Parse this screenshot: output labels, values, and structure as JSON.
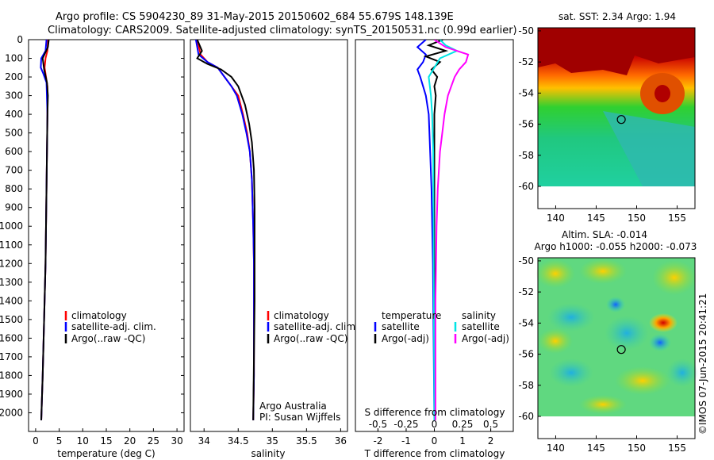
{
  "title_line1": "Argo profile: CS 5904230_89 31-May-2015 20150602_684 55.679S 148.139E",
  "title_line2": "Climatology: CARS2009. Satellite-adjusted climatology: synTS_20150531.nc (0.99d earlier)",
  "depth_axis": {
    "min": 0,
    "max": 2100,
    "ticks": [
      0,
      100,
      200,
      300,
      400,
      500,
      600,
      700,
      800,
      900,
      1000,
      1100,
      1200,
      1300,
      1400,
      1500,
      1600,
      1700,
      1800,
      1900,
      2000
    ]
  },
  "chart_data": [
    {
      "type": "line",
      "name": "temperature",
      "xlabel": "temperature (deg C)",
      "xlim": [
        -1.5,
        31.5
      ],
      "xticks": [
        0,
        5,
        10,
        15,
        20,
        25,
        30
      ],
      "series": [
        {
          "name": "climatology",
          "color": "#ff0000",
          "x": [
            2.6,
            2.5,
            2.1,
            1.9,
            2.2,
            2.5,
            2.5,
            2.4,
            2.3,
            2.2,
            2.1,
            1.9,
            1.7,
            1.5,
            1.2
          ],
          "y": [
            0,
            60,
            100,
            150,
            200,
            250,
            400,
            600,
            800,
            1000,
            1200,
            1400,
            1600,
            1800,
            2040
          ]
        },
        {
          "name": "satellite-adj. clim.",
          "color": "#0000ff",
          "x": [
            2.3,
            2.1,
            1.2,
            1.1,
            1.6,
            2.3,
            2.5,
            2.4,
            2.3,
            2.2,
            2.1,
            1.9,
            1.7,
            1.5,
            1.2
          ],
          "y": [
            0,
            60,
            100,
            150,
            180,
            230,
            400,
            600,
            800,
            1000,
            1200,
            1400,
            1600,
            1800,
            2040
          ]
        },
        {
          "name": "Argo(..raw -QC)",
          "color": "#000000",
          "x": [
            2.8,
            2.6,
            1.5,
            1.8,
            2.4,
            2.6,
            2.5,
            2.4,
            2.3,
            2.2,
            2.1,
            1.9,
            1.7,
            1.5,
            1.2
          ],
          "y": [
            0,
            40,
            100,
            160,
            230,
            300,
            400,
            600,
            800,
            1000,
            1200,
            1400,
            1600,
            1800,
            2040
          ]
        }
      ],
      "legend": [
        "climatology",
        "satellite-adj. clim.",
        "Argo(..raw -QC)"
      ]
    },
    {
      "type": "line",
      "name": "salinity",
      "xlabel": "salinity",
      "xlim": [
        33.8,
        36.1
      ],
      "xticks": [
        34,
        34.5,
        35,
        35.5,
        36
      ],
      "tick_labels": [
        "34",
        "34.5",
        "35",
        "35.5",
        "36"
      ],
      "series": [
        {
          "name": "climatology",
          "color": "#ff0000",
          "x": [
            33.9,
            33.95,
            34.05,
            34.2,
            34.3,
            34.4,
            34.5,
            34.57,
            34.63,
            34.67,
            34.7,
            34.72,
            34.73,
            34.73,
            34.73,
            34.72
          ],
          "y": [
            0,
            80,
            120,
            150,
            200,
            250,
            300,
            400,
            500,
            600,
            750,
            1000,
            1200,
            1500,
            1800,
            2040
          ]
        },
        {
          "name": "satellite-adj. clim.",
          "color": "#0000ff",
          "x": [
            33.88,
            33.92,
            34.05,
            34.2,
            34.3,
            34.4,
            34.48,
            34.56,
            34.62,
            34.67,
            34.7,
            34.72,
            34.73,
            34.73,
            34.73,
            34.72
          ],
          "y": [
            0,
            80,
            120,
            150,
            200,
            250,
            300,
            400,
            500,
            600,
            750,
            1000,
            1200,
            1500,
            1800,
            2040
          ]
        },
        {
          "name": "Argo(..raw -QC)",
          "color": "#000000",
          "x": [
            33.9,
            33.97,
            33.9,
            34.05,
            34.25,
            34.4,
            34.5,
            34.6,
            34.66,
            34.7,
            34.73,
            34.74,
            34.74,
            34.74,
            34.73,
            34.72
          ],
          "y": [
            0,
            60,
            100,
            130,
            160,
            200,
            250,
            350,
            450,
            550,
            700,
            900,
            1100,
            1400,
            1700,
            2040
          ]
        }
      ],
      "legend": [
        "climatology",
        "satellite-adj. clim.",
        "Argo(..raw -QC)"
      ],
      "annotation": [
        "Argo Australia",
        "PI: Susan Wijffels"
      ]
    },
    {
      "type": "line",
      "name": "difference",
      "xlabel": "T difference from climatology",
      "xlabel_top": "S difference from climatology",
      "xlim_T": [
        -2.8,
        2.8
      ],
      "xticks_T": [
        -2,
        -1,
        0,
        1,
        2
      ],
      "xlim_S": [
        -0.7,
        0.7
      ],
      "xticks_S": [
        -0.5,
        -0.25,
        0,
        0.25,
        0.5
      ],
      "tick_labels_S": [
        "-0.5",
        "-0.25",
        "0",
        "0.25",
        "0.5"
      ],
      "series": [
        {
          "name": "T satellite",
          "color": "#0000ff",
          "axis": "T",
          "x": [
            -0.3,
            -0.6,
            -0.3,
            -0.4,
            -0.6,
            -0.5,
            -0.4,
            -0.3,
            -0.2,
            -0.15,
            -0.1,
            -0.05,
            0
          ],
          "y": [
            0,
            40,
            80,
            120,
            160,
            200,
            250,
            300,
            400,
            600,
            800,
            1200,
            2040
          ]
        },
        {
          "name": "T Argo(-adj)",
          "color": "#000000",
          "axis": "T",
          "x": [
            0.3,
            -0.2,
            0.4,
            -0.3,
            0.2,
            -0.1,
            0.1,
            0,
            0.05,
            0,
            0,
            0,
            0
          ],
          "y": [
            0,
            30,
            60,
            90,
            120,
            160,
            200,
            250,
            300,
            400,
            600,
            1000,
            2040
          ]
        },
        {
          "name": "S satellite",
          "color": "#00e5e5",
          "axis": "S",
          "x": [
            0.05,
            0.1,
            0.2,
            0.05,
            0,
            -0.05,
            -0.04,
            -0.03,
            -0.02,
            -0.01,
            0
          ],
          "y": [
            0,
            30,
            60,
            100,
            150,
            200,
            250,
            300,
            400,
            600,
            2040
          ]
        },
        {
          "name": "S Argo(-adj)",
          "color": "#ff00ff",
          "axis": "S",
          "x": [
            0,
            0.1,
            0.3,
            0.28,
            0.22,
            0.18,
            0.15,
            0.12,
            0.09,
            0.07,
            0.05,
            0.03,
            0.02,
            0.01,
            0.01
          ],
          "y": [
            0,
            40,
            80,
            120,
            160,
            200,
            250,
            300,
            400,
            500,
            600,
            800,
            1000,
            1400,
            2040
          ]
        }
      ],
      "legend_titles": [
        "temperature",
        "salinity"
      ],
      "legend": [
        "satellite",
        "Argo(-adj)",
        "satellite",
        "Argo(-adj)"
      ]
    }
  ],
  "maps": [
    {
      "name": "sst-map",
      "title": "sat. SST: 2.34  Argo: 1.94",
      "lon_ticks": [
        140,
        145,
        150,
        155
      ],
      "lat_ticks": [
        -50,
        -52,
        -54,
        -56,
        -58,
        -60
      ],
      "lat_labels": [
        "-50",
        "-52",
        "-54",
        "-56",
        "-58",
        "-60"
      ],
      "marker_lon": 148.1,
      "marker_lat": -55.7
    },
    {
      "name": "sla-map",
      "title1": "Altim. SLA: -0.014",
      "title2": "Argo h1000: -0.055 h2000: -0.073",
      "lon_ticks": [
        140,
        145,
        150,
        155
      ],
      "lat_ticks": [
        -50,
        -52,
        -54,
        -56,
        -58,
        -60
      ],
      "lat_labels": [
        "-50",
        "-52",
        "-54",
        "-56",
        "-58",
        "-60"
      ],
      "marker_lon": 148.1,
      "marker_lat": -55.7
    }
  ],
  "footer": "©IMOS 07-Jun-2015 20:41:21"
}
